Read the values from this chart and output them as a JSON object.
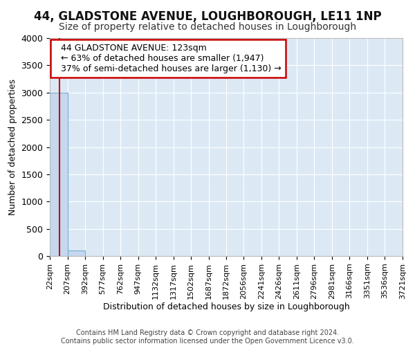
{
  "title": "44, GLADSTONE AVENUE, LOUGHBOROUGH, LE11 1NP",
  "subtitle": "Size of property relative to detached houses in Loughborough",
  "xlabel": "Distribution of detached houses by size in Loughborough",
  "ylabel": "Number of detached properties",
  "footer_line1": "Contains HM Land Registry data © Crown copyright and database right 2024.",
  "footer_line2": "Contains public sector information licensed under the Open Government Licence v3.0.",
  "bin_edges": [
    22,
    207,
    392,
    577,
    762,
    947,
    1132,
    1317,
    1502,
    1687,
    1872,
    2056,
    2241,
    2426,
    2611,
    2796,
    2981,
    3166,
    3351,
    3536,
    3721
  ],
  "bar_heights": [
    3000,
    100,
    0,
    0,
    0,
    0,
    0,
    0,
    0,
    0,
    0,
    0,
    0,
    0,
    0,
    0,
    0,
    0,
    0,
    0
  ],
  "bar_color": "#c5d8ee",
  "bar_edge_color": "#7aadd4",
  "vline_color": "#cc0000",
  "vline_x": 123,
  "annotation_text_line1": "44 GLADSTONE AVENUE: 123sqm",
  "annotation_text_line2": "← 63% of detached houses are smaller (1,947)",
  "annotation_text_line3": "37% of semi-detached houses are larger (1,130) →",
  "annotation_box_color": "#cc0000",
  "ylim": [
    0,
    4000
  ],
  "yticks": [
    0,
    500,
    1000,
    1500,
    2000,
    2500,
    3000,
    3500,
    4000
  ],
  "plot_bg_color": "#dce9f5",
  "fig_bg_color": "#ffffff",
  "grid_color": "#ffffff",
  "tick_label_fontsize": 8,
  "axis_label_fontsize": 9,
  "title_fontsize": 12,
  "subtitle_fontsize": 10,
  "footer_fontsize": 7,
  "annotation_fontsize": 9
}
